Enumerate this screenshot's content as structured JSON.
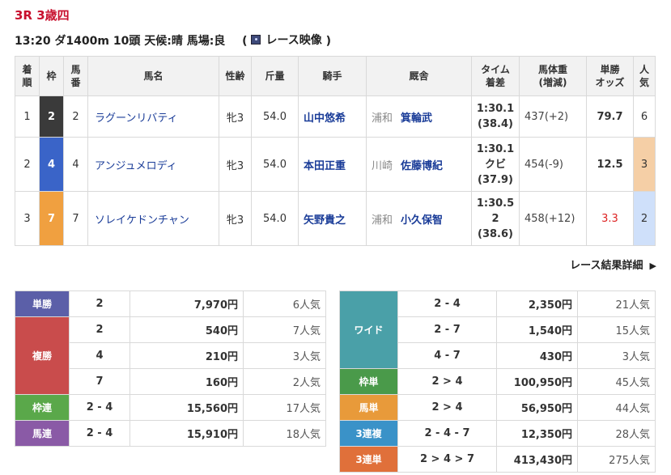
{
  "race": {
    "title": "3R 3歳四",
    "info": "13:20 ダ1400m 10頭 天候:晴 馬場:良",
    "video_open": "(",
    "video_label": "レース映像",
    "video_close": ")"
  },
  "results": {
    "headers": {
      "rank": [
        "着",
        "順"
      ],
      "waku": "枠",
      "num": [
        "馬",
        "番"
      ],
      "horse": "馬名",
      "sexage": "性齢",
      "weight_carried": "斤量",
      "jockey": "騎手",
      "trainer": "厩舎",
      "time": [
        "タイム",
        "着差"
      ],
      "body_weight": [
        "馬体重",
        "(増減)"
      ],
      "odds": [
        "単勝",
        "オッズ"
      ],
      "pop": [
        "人",
        "気"
      ]
    },
    "rows": [
      {
        "rank": "1",
        "waku": "2",
        "num": "2",
        "horse": "ラグーンリバティ",
        "sexage": "牝3",
        "kin": "54.0",
        "jockey": "山中悠希",
        "aff": "浦和",
        "trainer": "箕輪武",
        "time": "1:30.1",
        "margin": "(38.4)",
        "extra": "",
        "body": "437(+2)",
        "odds": "79.7",
        "pop": "6"
      },
      {
        "rank": "2",
        "waku": "4",
        "num": "4",
        "horse": "アンジュメロディ",
        "sexage": "牝3",
        "kin": "54.0",
        "jockey": "本田正重",
        "aff": "川崎",
        "trainer": "佐藤博紀",
        "time": "1:30.1",
        "margin": "クビ",
        "extra": "(37.9)",
        "body": "454(-9)",
        "odds": "12.5",
        "pop": "3"
      },
      {
        "rank": "3",
        "waku": "7",
        "num": "7",
        "horse": "ソレイケドンチャン",
        "sexage": "牝3",
        "kin": "54.0",
        "jockey": "矢野貴之",
        "aff": "浦和",
        "trainer": "小久保智",
        "time": "1:30.5",
        "margin": "2",
        "extra": "(38.6)",
        "body": "458(+12)",
        "odds": "3.3",
        "pop": "2"
      }
    ]
  },
  "detail_link": "レース結果詳細",
  "payout_left": {
    "tansho": {
      "label": "単勝",
      "num": "2",
      "yen": "7,970円",
      "pop": "6人気"
    },
    "fukusho": {
      "label": "複勝",
      "rows": [
        {
          "num": "2",
          "yen": "540円",
          "pop": "7人気"
        },
        {
          "num": "4",
          "yen": "210円",
          "pop": "3人気"
        },
        {
          "num": "7",
          "yen": "160円",
          "pop": "2人気"
        }
      ]
    },
    "wakuren": {
      "label": "枠連",
      "num": "2 - 4",
      "yen": "15,560円",
      "pop": "17人気"
    },
    "umaren": {
      "label": "馬連",
      "num": "2 - 4",
      "yen": "15,910円",
      "pop": "18人気"
    }
  },
  "payout_right": {
    "wide": {
      "label": "ワイド",
      "rows": [
        {
          "num": "2 - 4",
          "yen": "2,350円",
          "pop": "21人気"
        },
        {
          "num": "2 - 7",
          "yen": "1,540円",
          "pop": "15人気"
        },
        {
          "num": "4 - 7",
          "yen": "430円",
          "pop": "3人気"
        }
      ]
    },
    "wakutan": {
      "label": "枠単",
      "num": "2 > 4",
      "yen": "100,950円",
      "pop": "45人気"
    },
    "umatan": {
      "label": "馬単",
      "num": "2 > 4",
      "yen": "56,950円",
      "pop": "44人気"
    },
    "sanfuku": {
      "label": "3連複",
      "num": "2 - 4 - 7",
      "yen": "12,350円",
      "pop": "28人気"
    },
    "santan": {
      "label": "3連単",
      "num": "2 > 4 > 7",
      "yen": "413,430円",
      "pop": "275人気"
    }
  },
  "colors": {
    "title": "#c8102e",
    "waku2": "#3a3a3a",
    "waku4": "#3a64c8",
    "waku7": "#f0a040",
    "pop_orange": "#f5cfa6",
    "pop_blue": "#cfe0fa"
  }
}
